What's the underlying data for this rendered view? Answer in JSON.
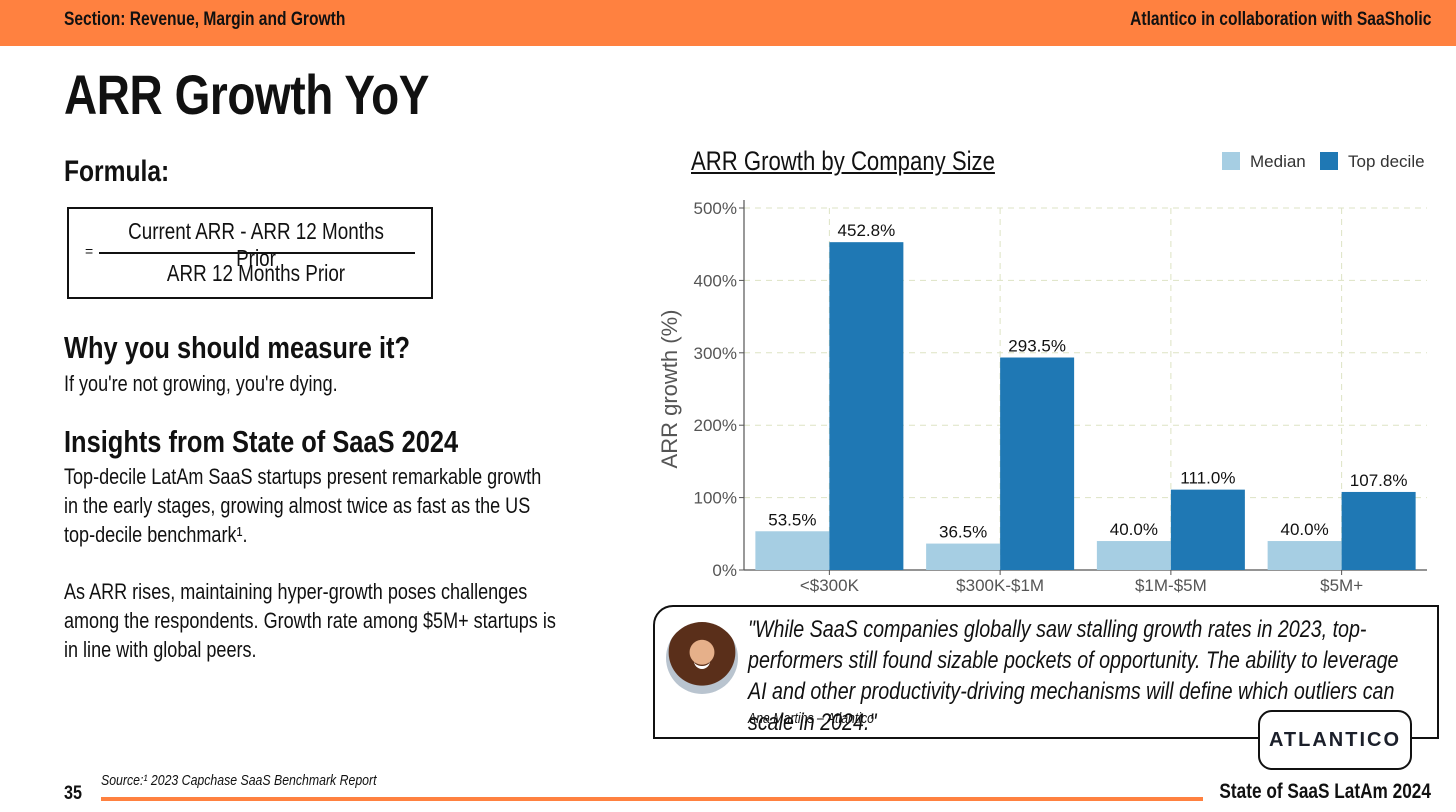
{
  "header": {
    "section": "Section: Revenue, Margin and Growth",
    "collab": "Atlantico in collaboration with SaaSholic"
  },
  "title": "ARR Growth YoY",
  "formula": {
    "heading": "Formula:",
    "equals": "=",
    "numerator": "Current ARR - ARR 12 Months Prior",
    "denominator": "ARR 12 Months Prior"
  },
  "why": {
    "heading": "Why you should measure it?",
    "text": "If you're not growing, you're dying."
  },
  "insights": {
    "heading": "Insights from State of SaaS 2024",
    "p1": "Top-decile LatAm SaaS startups present remarkable growth in the early stages, growing almost twice as fast as the US top-decile benchmark¹.",
    "p2": "As ARR rises, maintaining hyper-growth poses challenges among the respondents. Growth rate among $5M+ startups is in line with global peers."
  },
  "chart_data": {
    "type": "bar",
    "title": "ARR Growth by Company Size",
    "xlabel": "",
    "ylabel": "ARR growth (%)",
    "categories": [
      "<$300K",
      "$300K-$1M",
      "$1M-$5M",
      "$5M+"
    ],
    "series": [
      {
        "name": "Median",
        "color": "#a6cee3",
        "values": [
          53.5,
          36.5,
          40.0,
          40.0
        ],
        "labels": [
          "53.5%",
          "36.5%",
          "40.0%",
          "40.0%"
        ]
      },
      {
        "name": "Top decile",
        "color": "#1f78b4",
        "values": [
          452.8,
          293.5,
          111.0,
          107.8
        ],
        "labels": [
          "452.8%",
          "293.5%",
          "111.0%",
          "107.8%"
        ]
      }
    ],
    "ylim": [
      0,
      500
    ],
    "yticks": [
      0,
      100,
      200,
      300,
      400,
      500
    ],
    "ytick_labels": [
      "0%",
      "100%",
      "200%",
      "300%",
      "400%",
      "500%"
    ],
    "grid": true,
    "legend": "top-right"
  },
  "quote": {
    "text": "\"While SaaS companies globally saw stalling growth rates in 2023, top-performers still found sizable pockets of opportunity. The ability to leverage AI and other productivity-driving mechanisms will define which outliers can scale in 2024.\"",
    "author": "Ana Martins – Atlantico",
    "logo_text": "ATLANTICO"
  },
  "footer": {
    "page": "35",
    "source": "Source:¹ 2023 Capchase SaaS Benchmark Report",
    "report": "State of SaaS LatAm 2024"
  }
}
